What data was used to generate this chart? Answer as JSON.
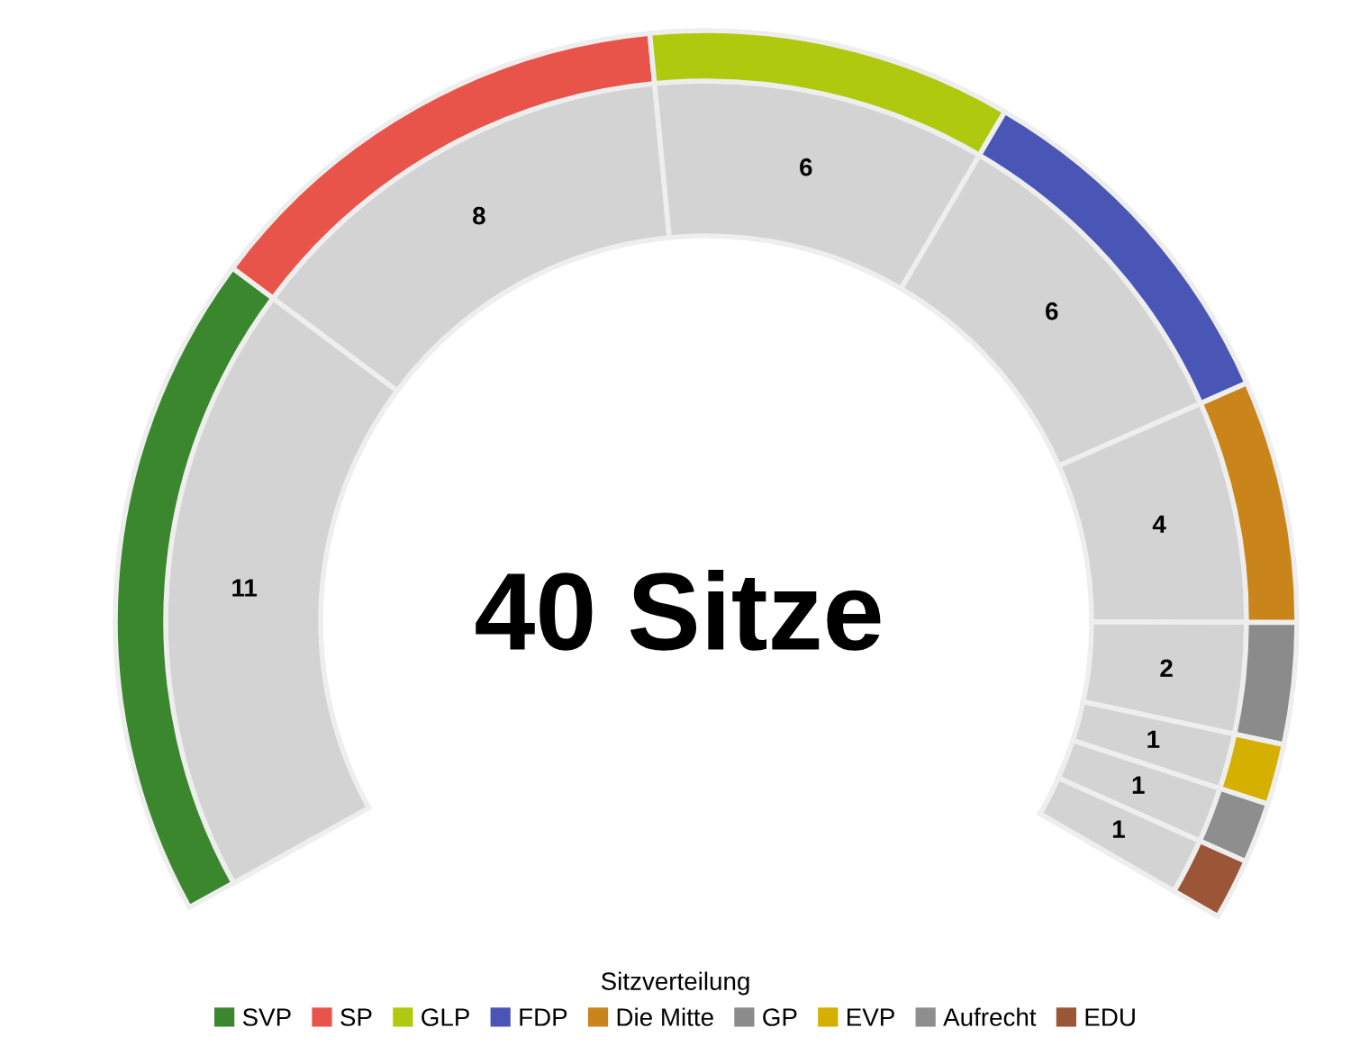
{
  "chart_data": {
    "type": "donut",
    "title": "40 Sitze",
    "legend_title": "Sitzverteilung",
    "legend": "bottom",
    "categories": [
      "SVP",
      "SP",
      "GLP",
      "FDP",
      "Die Mitte",
      "GP",
      "EVP",
      "Aufrecht",
      "EDU"
    ],
    "series": [
      {
        "color": "#d3d3d3",
        "values": [
          11,
          8,
          6,
          6,
          4,
          2,
          1,
          1,
          1
        ],
        "value_labels": [
          "11",
          "8",
          "6",
          "6",
          "4",
          "2",
          "1",
          "1",
          "1"
        ]
      },
      {
        "colors": [
          "#3a872e",
          "#e9544a",
          "#afc90e",
          "#4a56b5",
          "#c9841a",
          "#8b8b8b",
          "#d5b000",
          "#8e8e8e",
          "#9b5638"
        ],
        "values": [
          27.5,
          20,
          15,
          15,
          10,
          5,
          2.5,
          2.5,
          2.5
        ]
      }
    ]
  }
}
